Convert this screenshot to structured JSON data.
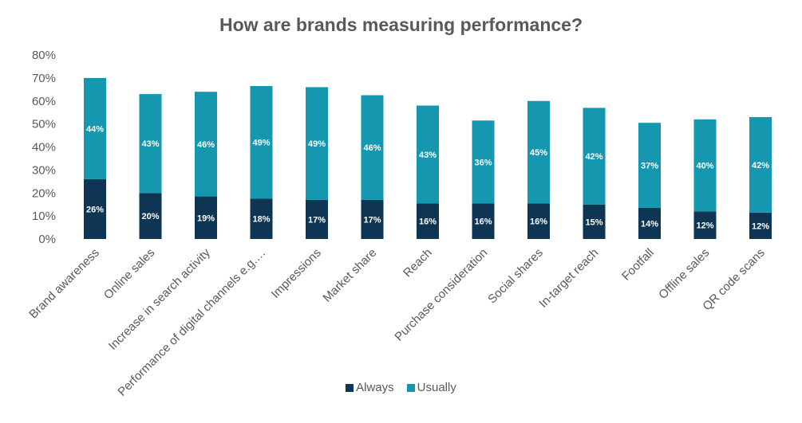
{
  "chart_data": {
    "type": "bar",
    "stacked": true,
    "title": "How are brands measuring performance?",
    "xlabel": "",
    "ylabel": "",
    "ylim": [
      0,
      80
    ],
    "yticks": [
      "0%",
      "10%",
      "20%",
      "30%",
      "40%",
      "50%",
      "60%",
      "70%",
      "80%"
    ],
    "grid": false,
    "legend_position": "bottom",
    "categories": [
      "Brand awareness",
      "Online sales",
      "Increase in search activity",
      "Performance of digital channels e.g.…",
      "Impressions",
      "Market share",
      "Reach",
      "Purchase consideration",
      "Social shares",
      "In-target reach",
      "Footfall",
      "Offline sales",
      "QR code scans"
    ],
    "series": [
      {
        "name": "Always",
        "color": "#0e3654",
        "values": [
          26,
          20,
          18.5,
          17.5,
          17,
          17,
          15.5,
          15.5,
          15.5,
          15,
          13.5,
          12,
          11.5
        ],
        "labels": [
          "26%",
          "20%",
          "19%",
          "18%",
          "17%",
          "17%",
          "16%",
          "16%",
          "16%",
          "15%",
          "14%",
          "12%",
          "12%"
        ]
      },
      {
        "name": "Usually",
        "color": "#1597b0",
        "values": [
          44,
          43,
          45.5,
          49,
          49,
          45.5,
          42.5,
          36,
          44.5,
          42,
          37,
          40,
          41.5
        ],
        "labels": [
          "44%",
          "43%",
          "46%",
          "49%",
          "49%",
          "46%",
          "43%",
          "36%",
          "45%",
          "42%",
          "37%",
          "40%",
          "42%"
        ]
      }
    ]
  }
}
